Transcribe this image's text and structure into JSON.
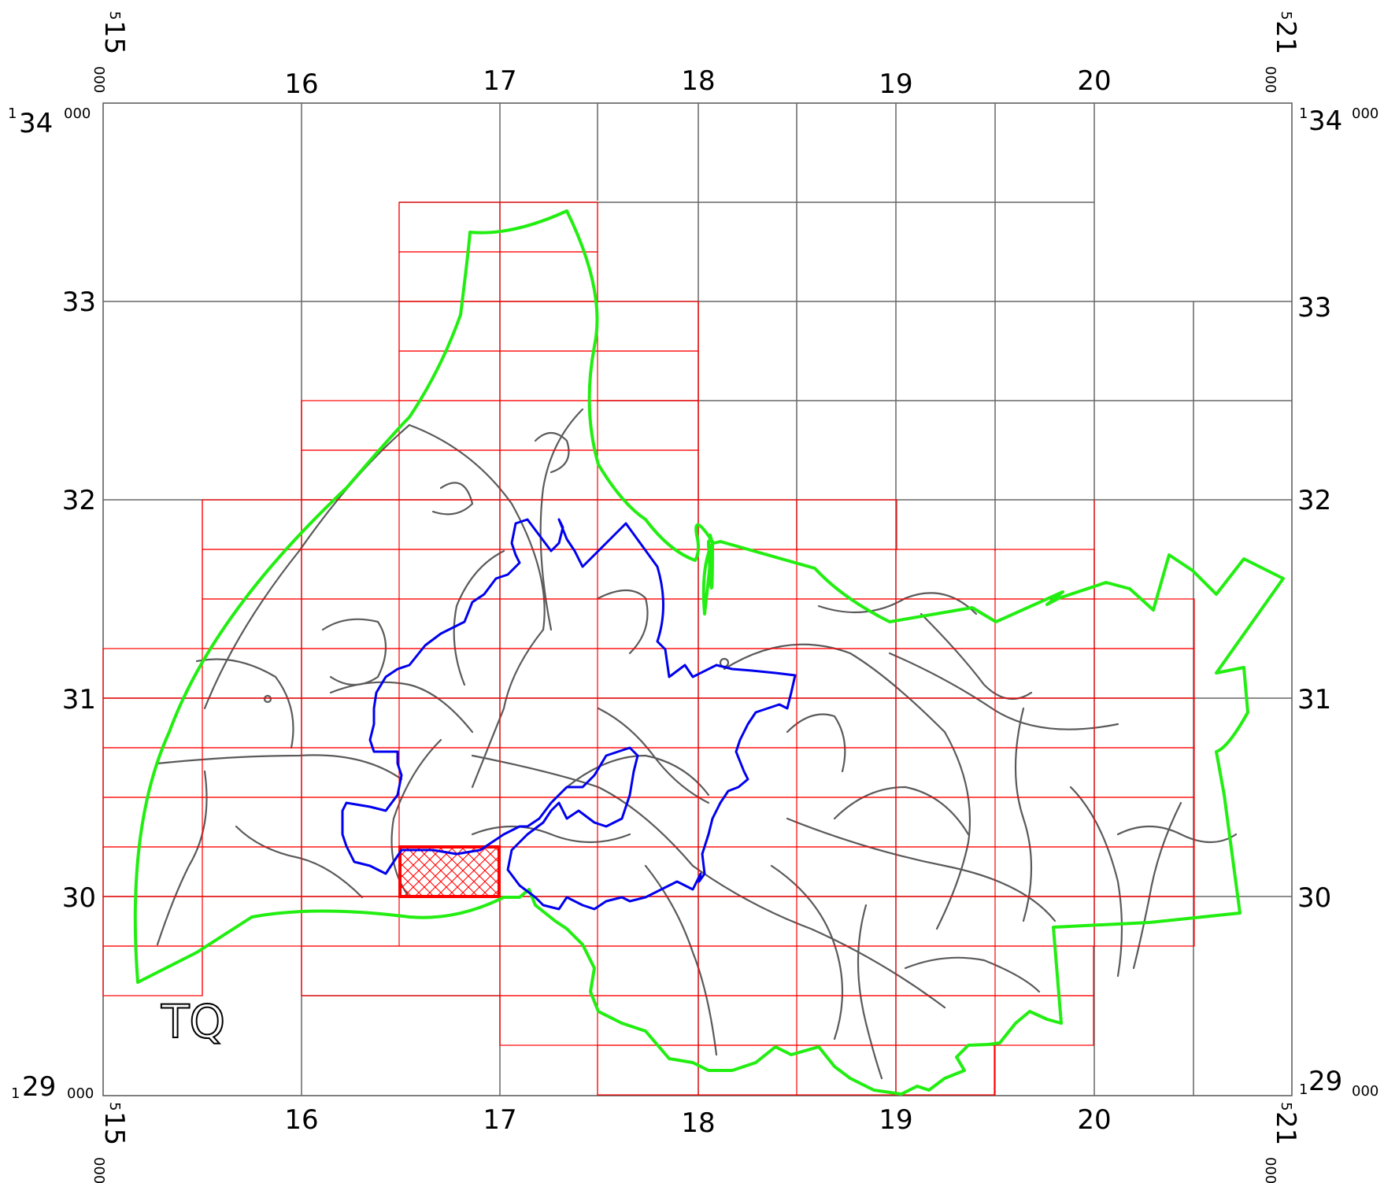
{
  "map": {
    "grid_square": "TQ",
    "easting_labels": [
      "16",
      "17",
      "18",
      "19",
      "20"
    ],
    "northing_labels": [
      "33",
      "32",
      "31",
      "30"
    ],
    "corner_labels": {
      "top_left_easting": {
        "sup": "5",
        "main": "15",
        "sub": "000"
      },
      "top_right_easting": {
        "sup": "5",
        "main": "21",
        "sub": "000"
      },
      "bottom_left_easting": {
        "sup": "5",
        "main": "15",
        "sub": "000"
      },
      "bottom_right_easting": {
        "sup": "5",
        "main": "21",
        "sub": "000"
      },
      "top_left_northing": {
        "sup": "1",
        "main": "34",
        "sub": "000"
      },
      "top_right_northing": {
        "sup": "1",
        "main": "34",
        "sub": "000"
      },
      "bottom_left_northing": {
        "sup": "1",
        "main": "29",
        "sub": "000"
      },
      "bottom_right_northing": {
        "sup": "1",
        "main": "29",
        "sub": "000"
      }
    },
    "colors": {
      "grid": "#666666",
      "roads": "#5a5a5a",
      "sheet_grid": "#ff0000",
      "outer_boundary": "#22ee11",
      "inner_boundary": "#0000ee",
      "highlight": "#ff0000"
    }
  }
}
